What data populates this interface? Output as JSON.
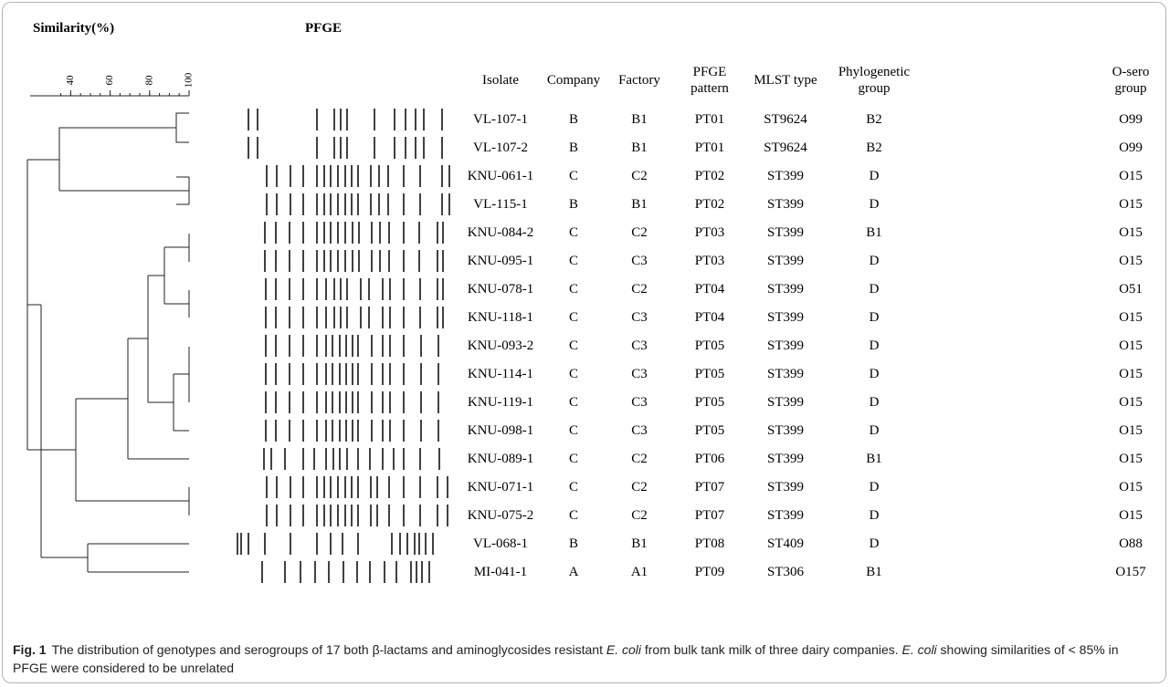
{
  "header": {
    "similarity": "Similarity(%)",
    "pfge": "PFGE"
  },
  "axis": {
    "ticks": [
      40,
      60,
      80,
      100
    ]
  },
  "table": {
    "columns": [
      "Isolate",
      "Company",
      "Factory",
      "PFGE pattern",
      "MLST type",
      "Phylogenetic group",
      "O-sero group"
    ],
    "rows": [
      [
        "VL-107-1",
        "B",
        "B1",
        "PT01",
        "ST9624",
        "B2",
        "O99"
      ],
      [
        "VL-107-2",
        "B",
        "B1",
        "PT01",
        "ST9624",
        "B2",
        "O99"
      ],
      [
        "KNU-061-1",
        "C",
        "C2",
        "PT02",
        "ST399",
        "D",
        "O15"
      ],
      [
        "VL-115-1",
        "B",
        "B1",
        "PT02",
        "ST399",
        "D",
        "O15"
      ],
      [
        "KNU-084-2",
        "C",
        "C2",
        "PT03",
        "ST399",
        "B1",
        "O15"
      ],
      [
        "KNU-095-1",
        "C",
        "C3",
        "PT03",
        "ST399",
        "D",
        "O15"
      ],
      [
        "KNU-078-1",
        "C",
        "C2",
        "PT04",
        "ST399",
        "D",
        "O51"
      ],
      [
        "KNU-118-1",
        "C",
        "C3",
        "PT04",
        "ST399",
        "D",
        "O15"
      ],
      [
        "KNU-093-2",
        "C",
        "C3",
        "PT05",
        "ST399",
        "D",
        "O15"
      ],
      [
        "KNU-114-1",
        "C",
        "C3",
        "PT05",
        "ST399",
        "D",
        "O15"
      ],
      [
        "KNU-119-1",
        "C",
        "C3",
        "PT05",
        "ST399",
        "D",
        "O15"
      ],
      [
        "KNU-098-1",
        "C",
        "C3",
        "PT05",
        "ST399",
        "D",
        "O15"
      ],
      [
        "KNU-089-1",
        "C",
        "C2",
        "PT06",
        "ST399",
        "B1",
        "O15"
      ],
      [
        "KNU-071-1",
        "C",
        "C2",
        "PT07",
        "ST399",
        "D",
        "O15"
      ],
      [
        "KNU-075-2",
        "C",
        "C2",
        "PT07",
        "ST399",
        "D",
        "O15"
      ],
      [
        "VL-068-1",
        "B",
        "B1",
        "PT08",
        "ST409",
        "D",
        "O88"
      ],
      [
        "MI-041-1",
        "A",
        "A1",
        "PT09",
        "ST306",
        "B1",
        "O157"
      ]
    ]
  },
  "caption": {
    "label": "Fig. 1",
    "segments": [
      {
        "text": "The distribution of genotypes and serogroups of 17 both β-lactams and aminoglycosides resistant ",
        "italic": false
      },
      {
        "text": "E. coli",
        "italic": true
      },
      {
        "text": " from bulk tank milk of three dairy companies. ",
        "italic": false
      },
      {
        "text": "E. coli",
        "italic": true
      },
      {
        "text": " showing similarities of < 85% in PFGE were considered to be unrelated",
        "italic": false
      }
    ]
  }
}
